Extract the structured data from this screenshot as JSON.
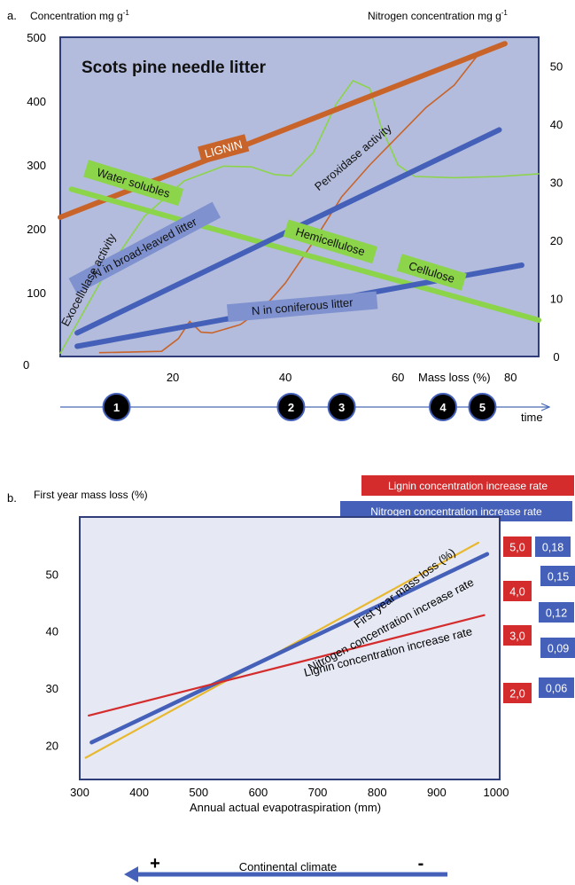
{
  "chart_data": [
    {
      "panel": "a.",
      "type": "line",
      "title": "Scots pine needle litter",
      "left_axis_label": "Concentration mg g",
      "left_axis_sup": "-1",
      "right_axis_label": "Nitrogen concentration  mg g",
      "right_axis_sup": "-1",
      "xlabel": "Mass loss (%)",
      "time_label": "time",
      "xlim": [
        0,
        85
      ],
      "ylim": [
        0,
        500
      ],
      "y2lim": [
        0,
        55
      ],
      "x_ticks": [
        "20",
        "40",
        "60",
        "80"
      ],
      "x_tick_values": [
        20,
        40,
        60,
        80
      ],
      "origin_label": "0",
      "y_ticks": [
        100,
        200,
        300,
        400,
        500
      ],
      "y2_ticks": [
        0,
        10,
        20,
        30,
        40,
        50
      ],
      "stages": [
        {
          "label": "1",
          "x": 10
        },
        {
          "label": "2",
          "x": 41
        },
        {
          "label": "3",
          "x": 50
        },
        {
          "label": "4",
          "x": 68
        },
        {
          "label": "5",
          "x": 75
        }
      ],
      "series": [
        {
          "name": "LIGNIN",
          "color": "#c8642a",
          "label_x": 29,
          "label_y": 325,
          "label_angle": -15,
          "points": [
            [
              0,
              218
            ],
            [
              79,
              490
            ]
          ]
        },
        {
          "name": "Water solubles",
          "color": "#8cd44a",
          "label_x": 13,
          "label_y": 272,
          "label_angle": 17,
          "points": [
            [
              2,
              262
            ],
            [
              85,
              57
            ]
          ]
        },
        {
          "name": "Cellulose",
          "color": "#8cd44a",
          "label_x": 66,
          "label_y": 132,
          "label_angle": 17,
          "points": []
        },
        {
          "name": "Hemicellulose",
          "color": "#8cd44a",
          "label_x": 48,
          "label_y": 180,
          "label_angle": 17,
          "points": []
        },
        {
          "name": "N in broad-leaved litter",
          "color": "#4460b8",
          "label_x": 15,
          "label_y": 170,
          "label_angle": -28,
          "points": [
            [
              3,
              37
            ],
            [
              78,
              355
            ]
          ]
        },
        {
          "name": "N in coniferous litter",
          "color": "#4460b8",
          "label_x": 43,
          "label_y": 78,
          "label_angle": -5,
          "points": [
            [
              3,
              16
            ],
            [
              82,
              143
            ]
          ]
        },
        {
          "name": "Exocellulase activity",
          "color": "#8cd44a",
          "label_x": 5,
          "label_y": 120,
          "label_angle": -62,
          "points": [
            [
              0,
              5
            ],
            [
              8,
              130
            ],
            [
              15,
              220
            ],
            [
              22,
              275
            ],
            [
              29,
              298
            ],
            [
              34,
              297
            ],
            [
              38,
              285
            ],
            [
              41,
              283
            ],
            [
              45,
              320
            ],
            [
              49,
              395
            ],
            [
              52,
              432
            ],
            [
              55,
              420
            ],
            [
              57,
              360
            ],
            [
              60,
              300
            ],
            [
              63,
              282
            ],
            [
              70,
              280
            ],
            [
              78,
              282
            ],
            [
              85,
              286
            ]
          ]
        },
        {
          "name": "Peroxidase activity",
          "color": "#c8642a",
          "label_x": 52,
          "label_y": 312,
          "label_angle": -40,
          "points": [
            [
              7,
              6
            ],
            [
              18,
              8
            ],
            [
              21,
              28
            ],
            [
              23,
              55
            ],
            [
              25,
              38
            ],
            [
              27,
              37
            ],
            [
              32,
              50
            ],
            [
              36,
              75
            ],
            [
              40,
              115
            ],
            [
              45,
              180
            ],
            [
              50,
              250
            ],
            [
              55,
              300
            ],
            [
              60,
              345
            ],
            [
              65,
              390
            ],
            [
              70,
              425
            ],
            [
              74,
              470
            ]
          ]
        }
      ]
    },
    {
      "panel": "b.",
      "type": "line",
      "ylabel": "First year mass loss (%)",
      "xlabel": "Annual actual evapotraspiration (mm)",
      "xlim": [
        300,
        1000
      ],
      "ylim": [
        14,
        60
      ],
      "x_ticks": [
        300,
        400,
        500,
        600,
        700,
        800,
        900,
        1000
      ],
      "y_ticks": [
        20,
        30,
        40,
        50
      ],
      "legend": [
        {
          "name": "Lignin concentration increase rate",
          "color": "#d42c2c"
        },
        {
          "name": "Nitrogen concentration increase rate",
          "color": "#4460b8"
        }
      ],
      "lignin_rate_axis": [
        "5,0",
        "4,0",
        "3,0",
        "2,0"
      ],
      "nitrogen_rate_axis": [
        "0,18",
        "0,15",
        "0,12",
        "0,09",
        "0,06"
      ],
      "series": [
        {
          "name": "First year mass loss (%)",
          "color": "#e8b830",
          "points": [
            [
              310,
              17.8
            ],
            [
              970,
              55.5
            ]
          ]
        },
        {
          "name": "Nitrogen concentration increase rate",
          "color": "#4460b8",
          "points": [
            [
              320,
              20.5
            ],
            [
              985,
              53.5
            ]
          ]
        },
        {
          "name": "Lignin concentration increase rate",
          "color": "#d42c2c",
          "points": [
            [
              315,
              25.2
            ],
            [
              980,
              42.8
            ]
          ]
        }
      ],
      "climate_label": "Continental climate",
      "climate_plus": "+",
      "climate_minus": "-"
    }
  ]
}
